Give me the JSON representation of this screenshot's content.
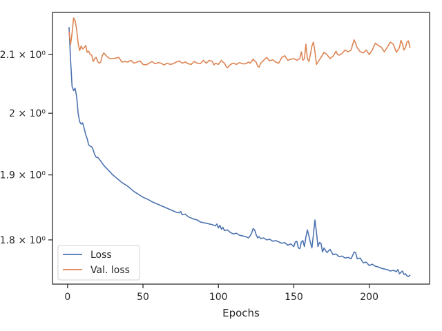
{
  "chart_data": {
    "type": "line",
    "title": "",
    "xlabel": "Epochs",
    "ylabel": "",
    "yscale": "log",
    "xlim": [
      -10,
      240
    ],
    "ylim": [
      1.735,
      2.175
    ],
    "grid": false,
    "legend_position": "lower-left",
    "x_ticks": [
      0,
      50,
      100,
      150,
      200
    ],
    "y_ticks": [
      {
        "value": 1.8,
        "label": "1.8 × 10⁰"
      },
      {
        "value": 1.9,
        "label": "1.9 × 10⁰"
      },
      {
        "value": 2.0,
        "label": "2 × 10⁰"
      },
      {
        "value": 2.1,
        "label": "2.1 × 10⁰"
      }
    ],
    "series": [
      {
        "name": "Loss",
        "color": "#4c72b0",
        "points": [
          [
            1,
            2.148
          ],
          [
            2,
            2.09
          ],
          [
            3,
            2.045
          ],
          [
            4,
            2.038
          ],
          [
            5,
            2.042
          ],
          [
            6,
            2.028
          ],
          [
            7,
            2.0
          ],
          [
            8,
            1.986
          ],
          [
            9,
            1.982
          ],
          [
            10,
            1.984
          ],
          [
            11,
            1.975
          ],
          [
            12,
            1.965
          ],
          [
            13,
            1.958
          ],
          [
            14,
            1.948
          ],
          [
            15,
            1.946
          ],
          [
            16,
            1.945
          ],
          [
            17,
            1.94
          ],
          [
            18,
            1.932
          ],
          [
            19,
            1.928
          ],
          [
            20,
            1.928
          ],
          [
            22,
            1.922
          ],
          [
            24,
            1.915
          ],
          [
            26,
            1.91
          ],
          [
            28,
            1.905
          ],
          [
            30,
            1.9
          ],
          [
            32,
            1.896
          ],
          [
            34,
            1.892
          ],
          [
            36,
            1.888
          ],
          [
            38,
            1.885
          ],
          [
            40,
            1.882
          ],
          [
            42,
            1.878
          ],
          [
            44,
            1.874
          ],
          [
            46,
            1.871
          ],
          [
            48,
            1.868
          ],
          [
            50,
            1.865
          ],
          [
            53,
            1.862
          ],
          [
            56,
            1.858
          ],
          [
            60,
            1.854
          ],
          [
            64,
            1.85
          ],
          [
            68,
            1.846
          ],
          [
            72,
            1.842
          ],
          [
            74,
            1.841
          ],
          [
            75,
            1.843
          ],
          [
            76,
            1.838
          ],
          [
            78,
            1.839
          ],
          [
            80,
            1.835
          ],
          [
            83,
            1.832
          ],
          [
            86,
            1.83
          ],
          [
            88,
            1.827
          ],
          [
            90,
            1.826
          ],
          [
            92,
            1.825
          ],
          [
            94,
            1.824
          ],
          [
            96,
            1.823
          ],
          [
            98,
            1.821
          ],
          [
            99,
            1.824
          ],
          [
            100,
            1.818
          ],
          [
            101,
            1.822
          ],
          [
            102,
            1.816
          ],
          [
            103,
            1.819
          ],
          [
            104,
            1.814
          ],
          [
            106,
            1.815
          ],
          [
            108,
            1.811
          ],
          [
            110,
            1.809
          ],
          [
            112,
            1.81
          ],
          [
            114,
            1.807
          ],
          [
            116,
            1.806
          ],
          [
            118,
            1.805
          ],
          [
            120,
            1.803
          ],
          [
            121,
            1.806
          ],
          [
            122,
            1.81
          ],
          [
            123,
            1.817
          ],
          [
            124,
            1.815
          ],
          [
            125,
            1.808
          ],
          [
            126,
            1.803
          ],
          [
            127,
            1.805
          ],
          [
            128,
            1.802
          ],
          [
            130,
            1.803
          ],
          [
            132,
            1.8
          ],
          [
            134,
            1.801
          ],
          [
            136,
            1.798
          ],
          [
            138,
            1.799
          ],
          [
            140,
            1.797
          ],
          [
            142,
            1.795
          ],
          [
            144,
            1.796
          ],
          [
            146,
            1.792
          ],
          [
            148,
            1.794
          ],
          [
            150,
            1.79
          ],
          [
            151,
            1.797
          ],
          [
            152,
            1.798
          ],
          [
            153,
            1.788
          ],
          [
            154,
            1.787
          ],
          [
            155,
            1.797
          ],
          [
            156,
            1.799
          ],
          [
            157,
            1.79
          ],
          [
            158,
            1.804
          ],
          [
            159,
            1.815
          ],
          [
            160,
            1.806
          ],
          [
            161,
            1.796
          ],
          [
            162,
            1.788
          ],
          [
            163,
            1.808
          ],
          [
            164,
            1.83
          ],
          [
            165,
            1.812
          ],
          [
            166,
            1.79
          ],
          [
            167,
            1.796
          ],
          [
            168,
            1.795
          ],
          [
            169,
            1.782
          ],
          [
            170,
            1.788
          ],
          [
            172,
            1.781
          ],
          [
            174,
            1.786
          ],
          [
            176,
            1.778
          ],
          [
            178,
            1.779
          ],
          [
            180,
            1.775
          ],
          [
            182,
            1.776
          ],
          [
            184,
            1.773
          ],
          [
            186,
            1.774
          ],
          [
            188,
            1.772
          ],
          [
            189,
            1.777
          ],
          [
            190,
            1.782
          ],
          [
            191,
            1.781
          ],
          [
            192,
            1.772
          ],
          [
            194,
            1.773
          ],
          [
            196,
            1.766
          ],
          [
            198,
            1.767
          ],
          [
            200,
            1.762
          ],
          [
            202,
            1.764
          ],
          [
            204,
            1.761
          ],
          [
            206,
            1.76
          ],
          [
            208,
            1.758
          ],
          [
            210,
            1.757
          ],
          [
            212,
            1.756
          ],
          [
            214,
            1.754
          ],
          [
            216,
            1.755
          ],
          [
            218,
            1.753
          ],
          [
            219,
            1.756
          ],
          [
            220,
            1.75
          ],
          [
            221,
            1.752
          ],
          [
            222,
            1.754
          ],
          [
            223,
            1.749
          ],
          [
            224,
            1.75
          ],
          [
            225,
            1.747
          ],
          [
            226,
            1.746
          ],
          [
            227,
            1.748
          ]
        ]
      },
      {
        "name": "Val. loss",
        "color": "#dd8452",
        "points": [
          [
            1,
            2.14
          ],
          [
            2,
            2.118
          ],
          [
            3,
            2.138
          ],
          [
            4,
            2.165
          ],
          [
            5,
            2.16
          ],
          [
            6,
            2.145
          ],
          [
            7,
            2.12
          ],
          [
            8,
            2.107
          ],
          [
            9,
            2.115
          ],
          [
            10,
            2.11
          ],
          [
            11,
            2.112
          ],
          [
            12,
            2.116
          ],
          [
            13,
            2.104
          ],
          [
            14,
            2.106
          ],
          [
            15,
            2.1
          ],
          [
            16,
            2.099
          ],
          [
            17,
            2.088
          ],
          [
            18,
            2.093
          ],
          [
            19,
            2.095
          ],
          [
            20,
            2.088
          ],
          [
            21,
            2.085
          ],
          [
            22,
            2.087
          ],
          [
            23,
            2.098
          ],
          [
            24,
            2.103
          ],
          [
            26,
            2.097
          ],
          [
            28,
            2.093
          ],
          [
            30,
            2.093
          ],
          [
            32,
            2.094
          ],
          [
            34,
            2.095
          ],
          [
            36,
            2.087
          ],
          [
            38,
            2.088
          ],
          [
            40,
            2.087
          ],
          [
            42,
            2.09
          ],
          [
            44,
            2.085
          ],
          [
            46,
            2.087
          ],
          [
            48,
            2.089
          ],
          [
            50,
            2.083
          ],
          [
            52,
            2.082
          ],
          [
            54,
            2.085
          ],
          [
            56,
            2.088
          ],
          [
            58,
            2.084
          ],
          [
            60,
            2.086
          ],
          [
            62,
            2.085
          ],
          [
            64,
            2.082
          ],
          [
            66,
            2.085
          ],
          [
            68,
            2.083
          ],
          [
            70,
            2.084
          ],
          [
            72,
            2.087
          ],
          [
            74,
            2.089
          ],
          [
            76,
            2.085
          ],
          [
            78,
            2.087
          ],
          [
            80,
            2.084
          ],
          [
            82,
            2.083
          ],
          [
            84,
            2.088
          ],
          [
            86,
            2.085
          ],
          [
            88,
            2.084
          ],
          [
            90,
            2.09
          ],
          [
            92,
            2.085
          ],
          [
            94,
            2.09
          ],
          [
            96,
            2.088
          ],
          [
            97,
            2.082
          ],
          [
            98,
            2.085
          ],
          [
            100,
            2.083
          ],
          [
            102,
            2.09
          ],
          [
            103,
            2.087
          ],
          [
            104,
            2.085
          ],
          [
            105,
            2.08
          ],
          [
            106,
            2.077
          ],
          [
            108,
            2.083
          ],
          [
            110,
            2.085
          ],
          [
            112,
            2.083
          ],
          [
            114,
            2.086
          ],
          [
            116,
            2.084
          ],
          [
            118,
            2.084
          ],
          [
            120,
            2.087
          ],
          [
            121,
            2.085
          ],
          [
            122,
            2.088
          ],
          [
            123,
            2.092
          ],
          [
            124,
            2.089
          ],
          [
            125,
            2.087
          ],
          [
            126,
            2.08
          ],
          [
            127,
            2.078
          ],
          [
            128,
            2.085
          ],
          [
            130,
            2.09
          ],
          [
            132,
            2.095
          ],
          [
            134,
            2.089
          ],
          [
            136,
            2.091
          ],
          [
            138,
            2.087
          ],
          [
            140,
            2.085
          ],
          [
            142,
            2.095
          ],
          [
            144,
            2.098
          ],
          [
            146,
            2.09
          ],
          [
            148,
            2.092
          ],
          [
            150,
            2.093
          ],
          [
            152,
            2.09
          ],
          [
            154,
            2.093
          ],
          [
            155,
            2.105
          ],
          [
            156,
            2.09
          ],
          [
            157,
            2.093
          ],
          [
            158,
            2.118
          ],
          [
            159,
            2.093
          ],
          [
            160,
            2.088
          ],
          [
            161,
            2.1
          ],
          [
            162,
            2.115
          ],
          [
            163,
            2.122
          ],
          [
            164,
            2.105
          ],
          [
            165,
            2.083
          ],
          [
            166,
            2.087
          ],
          [
            168,
            2.095
          ],
          [
            170,
            2.104
          ],
          [
            172,
            2.1
          ],
          [
            174,
            2.093
          ],
          [
            176,
            2.097
          ],
          [
            178,
            2.106
          ],
          [
            179,
            2.1
          ],
          [
            180,
            2.099
          ],
          [
            182,
            2.102
          ],
          [
            184,
            2.108
          ],
          [
            186,
            2.105
          ],
          [
            188,
            2.108
          ],
          [
            189,
            2.118
          ],
          [
            190,
            2.126
          ],
          [
            191,
            2.12
          ],
          [
            192,
            2.112
          ],
          [
            194,
            2.105
          ],
          [
            196,
            2.103
          ],
          [
            198,
            2.108
          ],
          [
            200,
            2.1
          ],
          [
            202,
            2.108
          ],
          [
            204,
            2.12
          ],
          [
            206,
            2.116
          ],
          [
            208,
            2.113
          ],
          [
            210,
            2.105
          ],
          [
            212,
            2.113
          ],
          [
            214,
            2.122
          ],
          [
            216,
            2.118
          ],
          [
            218,
            2.104
          ],
          [
            220,
            2.112
          ],
          [
            221,
            2.125
          ],
          [
            222,
            2.119
          ],
          [
            223,
            2.108
          ],
          [
            224,
            2.112
          ],
          [
            225,
            2.122
          ],
          [
            226,
            2.124
          ],
          [
            227,
            2.112
          ]
        ]
      }
    ]
  }
}
